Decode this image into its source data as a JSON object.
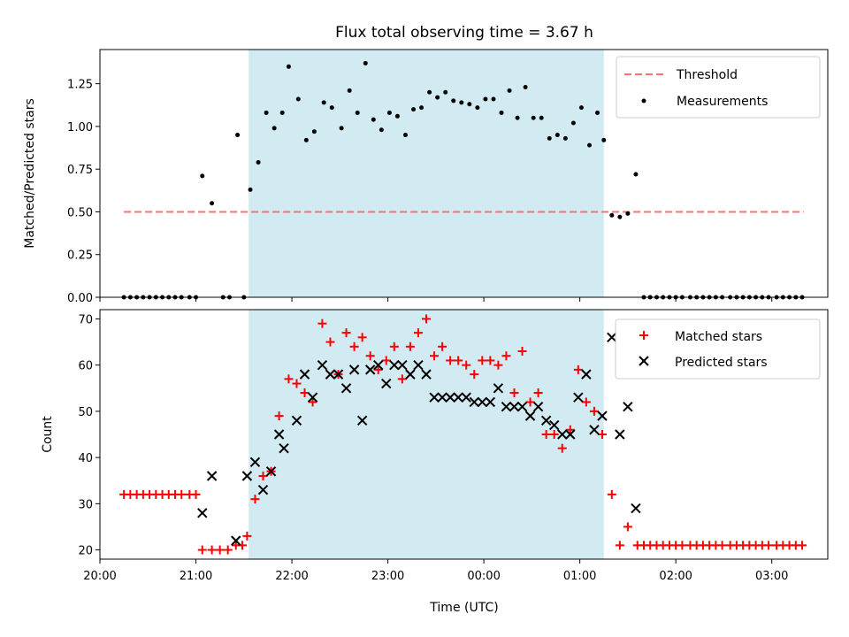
{
  "title": "Flux total observing time = 3.67 h",
  "chart_data": [
    {
      "type": "scatter",
      "panel": "top",
      "title": "Flux total observing time = 3.67 h",
      "xlabel": "",
      "ylabel": "Matched/Predicted stars",
      "xlim": [
        "20:00",
        "03:35"
      ],
      "ylim": [
        0,
        1.45
      ],
      "yticks": [
        0,
        0.25,
        0.5,
        0.75,
        1.0,
        1.25
      ],
      "ytick_labels": [
        "0.00",
        "0.25",
        "0.50",
        "0.75",
        "1.00",
        "1.25"
      ],
      "grid": false,
      "legend_position": "top-right",
      "shaded_region": {
        "start": "21:33",
        "end": "01:15",
        "color": "#add8e6"
      },
      "threshold": {
        "name": "Threshold",
        "value": 0.5,
        "x_start": "20:15",
        "x_end": "03:20",
        "color": "#ff7070",
        "style": "dashed"
      },
      "series": [
        {
          "name": "Measurements",
          "color": "#000000",
          "marker": "dot",
          "points": [
            [
              "20:15",
              0
            ],
            [
              "20:19",
              0
            ],
            [
              "20:23",
              0
            ],
            [
              "20:27",
              0
            ],
            [
              "20:31",
              0
            ],
            [
              "20:35",
              0
            ],
            [
              "20:39",
              0
            ],
            [
              "20:43",
              0
            ],
            [
              "20:47",
              0
            ],
            [
              "20:51",
              0
            ],
            [
              "20:56",
              0
            ],
            [
              "21:00",
              0
            ],
            [
              "21:04",
              0.71
            ],
            [
              "21:10",
              0.55
            ],
            [
              "21:17",
              0
            ],
            [
              "21:21",
              0
            ],
            [
              "21:26",
              0.95
            ],
            [
              "21:30",
              0
            ],
            [
              "21:34",
              0.63
            ],
            [
              "21:39",
              0.79
            ],
            [
              "21:44",
              1.08
            ],
            [
              "21:49",
              0.99
            ],
            [
              "21:54",
              1.08
            ],
            [
              "21:58",
              1.35
            ],
            [
              "22:04",
              1.16
            ],
            [
              "22:09",
              0.92
            ],
            [
              "22:14",
              0.97
            ],
            [
              "22:20",
              1.14
            ],
            [
              "22:25",
              1.11
            ],
            [
              "22:31",
              0.99
            ],
            [
              "22:36",
              1.21
            ],
            [
              "22:41",
              1.08
            ],
            [
              "22:46",
              1.37
            ],
            [
              "22:51",
              1.04
            ],
            [
              "22:56",
              0.98
            ],
            [
              "23:01",
              1.08
            ],
            [
              "23:06",
              1.06
            ],
            [
              "23:11",
              0.95
            ],
            [
              "23:16",
              1.1
            ],
            [
              "23:21",
              1.11
            ],
            [
              "23:26",
              1.2
            ],
            [
              "23:31",
              1.17
            ],
            [
              "23:36",
              1.2
            ],
            [
              "23:41",
              1.15
            ],
            [
              "23:46",
              1.14
            ],
            [
              "23:51",
              1.13
            ],
            [
              "23:56",
              1.11
            ],
            [
              "00:01",
              1.16
            ],
            [
              "00:06",
              1.16
            ],
            [
              "00:11",
              1.08
            ],
            [
              "00:16",
              1.21
            ],
            [
              "00:21",
              1.05
            ],
            [
              "00:26",
              1.23
            ],
            [
              "00:31",
              1.05
            ],
            [
              "00:36",
              1.05
            ],
            [
              "00:41",
              0.93
            ],
            [
              "00:46",
              0.95
            ],
            [
              "00:51",
              0.93
            ],
            [
              "00:56",
              1.02
            ],
            [
              "01:01",
              1.11
            ],
            [
              "01:06",
              0.89
            ],
            [
              "01:11",
              1.08
            ],
            [
              "01:15",
              0.92
            ],
            [
              "01:20",
              0.48
            ],
            [
              "01:25",
              0.47
            ],
            [
              "01:30",
              0.49
            ],
            [
              "01:35",
              0.72
            ],
            [
              "01:40",
              0
            ],
            [
              "01:44",
              0
            ],
            [
              "01:48",
              0
            ],
            [
              "01:52",
              0
            ],
            [
              "01:56",
              0
            ],
            [
              "02:00",
              0
            ],
            [
              "02:04",
              0
            ],
            [
              "02:09",
              0
            ],
            [
              "02:13",
              0
            ],
            [
              "02:17",
              0
            ],
            [
              "02:21",
              0
            ],
            [
              "02:25",
              0
            ],
            [
              "02:29",
              0
            ],
            [
              "02:34",
              0
            ],
            [
              "02:38",
              0
            ],
            [
              "02:42",
              0
            ],
            [
              "02:46",
              0
            ],
            [
              "02:50",
              0
            ],
            [
              "02:54",
              0
            ],
            [
              "02:58",
              0
            ],
            [
              "03:03",
              0
            ],
            [
              "03:07",
              0
            ],
            [
              "03:11",
              0
            ],
            [
              "03:15",
              0
            ],
            [
              "03:19",
              0
            ]
          ]
        }
      ]
    },
    {
      "type": "scatter",
      "panel": "bottom",
      "title": "",
      "xlabel": "Time (UTC)",
      "ylabel": "Count",
      "xlim": [
        "20:00",
        "03:35"
      ],
      "ylim": [
        18,
        72
      ],
      "yticks": [
        20,
        30,
        40,
        50,
        60,
        70
      ],
      "ytick_labels": [
        "20",
        "30",
        "40",
        "50",
        "60",
        "70"
      ],
      "xticks": [
        "20:00",
        "21:00",
        "22:00",
        "23:00",
        "00:00",
        "01:00",
        "02:00",
        "03:00"
      ],
      "grid": false,
      "legend_position": "top-right",
      "shaded_region": {
        "start": "21:33",
        "end": "01:15",
        "color": "#add8e6"
      },
      "series": [
        {
          "name": "Matched stars",
          "color": "#ff0000",
          "marker": "plus",
          "points": [
            [
              "20:15",
              32
            ],
            [
              "20:19",
              32
            ],
            [
              "20:23",
              32
            ],
            [
              "20:27",
              32
            ],
            [
              "20:31",
              32
            ],
            [
              "20:35",
              32
            ],
            [
              "20:39",
              32
            ],
            [
              "20:43",
              32
            ],
            [
              "20:47",
              32
            ],
            [
              "20:51",
              32
            ],
            [
              "20:56",
              32
            ],
            [
              "21:00",
              32
            ],
            [
              "21:04",
              20
            ],
            [
              "21:10",
              20
            ],
            [
              "21:15",
              20
            ],
            [
              "21:20",
              20
            ],
            [
              "21:25",
              21
            ],
            [
              "21:29",
              21
            ],
            [
              "21:32",
              23
            ],
            [
              "21:37",
              31
            ],
            [
              "21:42",
              36
            ],
            [
              "21:47",
              37
            ],
            [
              "21:52",
              49
            ],
            [
              "21:58",
              57
            ],
            [
              "22:03",
              56
            ],
            [
              "22:08",
              54
            ],
            [
              "22:13",
              52
            ],
            [
              "22:19",
              69
            ],
            [
              "22:24",
              65
            ],
            [
              "22:29",
              58
            ],
            [
              "22:34",
              67
            ],
            [
              "22:39",
              64
            ],
            [
              "22:44",
              66
            ],
            [
              "22:49",
              62
            ],
            [
              "22:54",
              59
            ],
            [
              "22:59",
              61
            ],
            [
              "23:04",
              64
            ],
            [
              "23:09",
              57
            ],
            [
              "23:14",
              64
            ],
            [
              "23:19",
              67
            ],
            [
              "23:24",
              70
            ],
            [
              "23:29",
              62
            ],
            [
              "23:34",
              64
            ],
            [
              "23:39",
              61
            ],
            [
              "23:44",
              61
            ],
            [
              "23:49",
              60
            ],
            [
              "23:54",
              58
            ],
            [
              "23:59",
              61
            ],
            [
              "00:04",
              61
            ],
            [
              "00:09",
              60
            ],
            [
              "00:14",
              62
            ],
            [
              "00:19",
              54
            ],
            [
              "00:24",
              63
            ],
            [
              "00:29",
              52
            ],
            [
              "00:34",
              54
            ],
            [
              "00:39",
              45
            ],
            [
              "00:44",
              45
            ],
            [
              "00:49",
              42
            ],
            [
              "00:54",
              46
            ],
            [
              "00:59",
              59
            ],
            [
              "01:04",
              52
            ],
            [
              "01:09",
              50
            ],
            [
              "01:14",
              45
            ],
            [
              "01:20",
              32
            ],
            [
              "01:25",
              21
            ],
            [
              "01:30",
              25
            ],
            [
              "01:36",
              21
            ],
            [
              "01:40",
              21
            ],
            [
              "01:44",
              21
            ],
            [
              "01:48",
              21
            ],
            [
              "01:52",
              21
            ],
            [
              "01:56",
              21
            ],
            [
              "02:00",
              21
            ],
            [
              "02:04",
              21
            ],
            [
              "02:09",
              21
            ],
            [
              "02:13",
              21
            ],
            [
              "02:17",
              21
            ],
            [
              "02:21",
              21
            ],
            [
              "02:25",
              21
            ],
            [
              "02:29",
              21
            ],
            [
              "02:34",
              21
            ],
            [
              "02:38",
              21
            ],
            [
              "02:42",
              21
            ],
            [
              "02:46",
              21
            ],
            [
              "02:50",
              21
            ],
            [
              "02:54",
              21
            ],
            [
              "02:58",
              21
            ],
            [
              "03:03",
              21
            ],
            [
              "03:07",
              21
            ],
            [
              "03:11",
              21
            ],
            [
              "03:15",
              21
            ],
            [
              "03:19",
              21
            ]
          ]
        },
        {
          "name": "Predicted stars",
          "color": "#000000",
          "marker": "x",
          "points": [
            [
              "21:04",
              28
            ],
            [
              "21:10",
              36
            ],
            [
              "21:25",
              22
            ],
            [
              "21:32",
              36
            ],
            [
              "21:37",
              39
            ],
            [
              "21:42",
              33
            ],
            [
              "21:47",
              37
            ],
            [
              "21:52",
              45
            ],
            [
              "21:55",
              42
            ],
            [
              "22:03",
              48
            ],
            [
              "22:08",
              58
            ],
            [
              "22:13",
              53
            ],
            [
              "22:19",
              60
            ],
            [
              "22:24",
              58
            ],
            [
              "22:29",
              58
            ],
            [
              "22:34",
              55
            ],
            [
              "22:39",
              59
            ],
            [
              "22:44",
              48
            ],
            [
              "22:49",
              59
            ],
            [
              "22:54",
              60
            ],
            [
              "22:59",
              56
            ],
            [
              "23:04",
              60
            ],
            [
              "23:09",
              60
            ],
            [
              "23:14",
              58
            ],
            [
              "23:19",
              60
            ],
            [
              "23:24",
              58
            ],
            [
              "23:29",
              53
            ],
            [
              "23:34",
              53
            ],
            [
              "23:39",
              53
            ],
            [
              "23:44",
              53
            ],
            [
              "23:49",
              53
            ],
            [
              "23:54",
              52
            ],
            [
              "23:59",
              52
            ],
            [
              "00:04",
              52
            ],
            [
              "00:09",
              55
            ],
            [
              "00:14",
              51
            ],
            [
              "00:19",
              51
            ],
            [
              "00:24",
              51
            ],
            [
              "00:29",
              49
            ],
            [
              "00:34",
              51
            ],
            [
              "00:39",
              48
            ],
            [
              "00:44",
              47
            ],
            [
              "00:49",
              45
            ],
            [
              "00:54",
              45
            ],
            [
              "00:59",
              53
            ],
            [
              "01:04",
              58
            ],
            [
              "01:09",
              46
            ],
            [
              "01:14",
              49
            ],
            [
              "01:20",
              66
            ],
            [
              "01:25",
              45
            ],
            [
              "01:30",
              51
            ],
            [
              "01:35",
              29
            ]
          ]
        }
      ]
    }
  ]
}
